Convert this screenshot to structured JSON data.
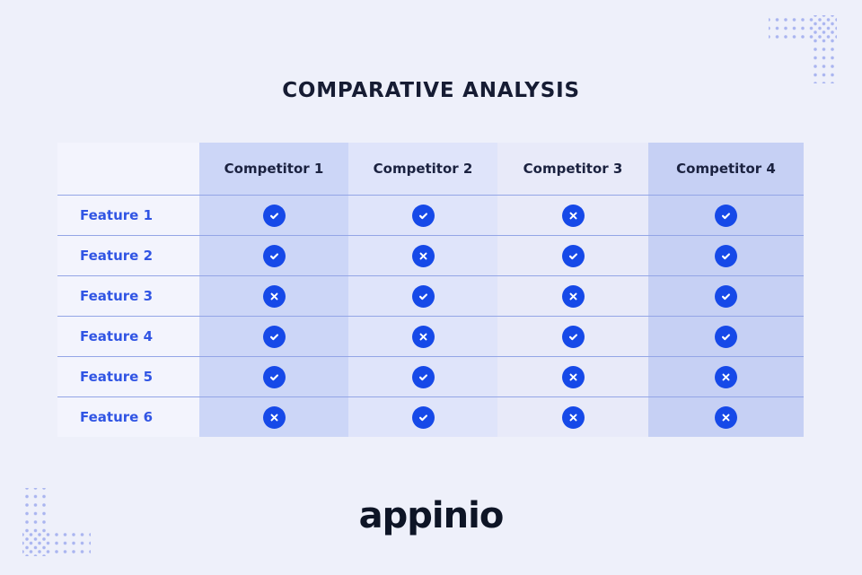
{
  "header": {
    "title": "COMPARATIVE ANALYSIS"
  },
  "chart_data": {
    "type": "table",
    "title": "COMPARATIVE ANALYSIS",
    "columns": [
      "",
      "Competitor 1",
      "Competitor 2",
      "Competitor 3",
      "Competitor 4"
    ],
    "rows": [
      {
        "feature": "Feature 1",
        "values": [
          "check",
          "check",
          "cross",
          "check"
        ]
      },
      {
        "feature": "Feature 2",
        "values": [
          "check",
          "cross",
          "check",
          "check"
        ]
      },
      {
        "feature": "Feature 3",
        "values": [
          "cross",
          "check",
          "cross",
          "check"
        ]
      },
      {
        "feature": "Feature 4",
        "values": [
          "check",
          "cross",
          "check",
          "check"
        ]
      },
      {
        "feature": "Feature 5",
        "values": [
          "check",
          "check",
          "cross",
          "cross"
        ]
      },
      {
        "feature": "Feature 6",
        "values": [
          "cross",
          "check",
          "cross",
          "cross"
        ]
      }
    ],
    "legend_position": "none",
    "grid": "horizontal-dividers"
  },
  "icons": {
    "check": "check-icon",
    "cross": "cross-icon"
  },
  "footer": {
    "logo_text": "appinio"
  },
  "colors": {
    "bg": "#eef0fa",
    "colFeature": "#f3f4fd",
    "col1": "#ccd6f7",
    "col2": "#dfe4fa",
    "col3": "#e8eaf9",
    "col4": "#c6d0f4",
    "divider": "#93a5e6",
    "iconBlue": "#1649e8",
    "featureText": "#3155e4",
    "headText": "#1b2240",
    "titleColor": "#161c33",
    "logoColor": "#0e1526",
    "dots": "#aab5f0"
  }
}
